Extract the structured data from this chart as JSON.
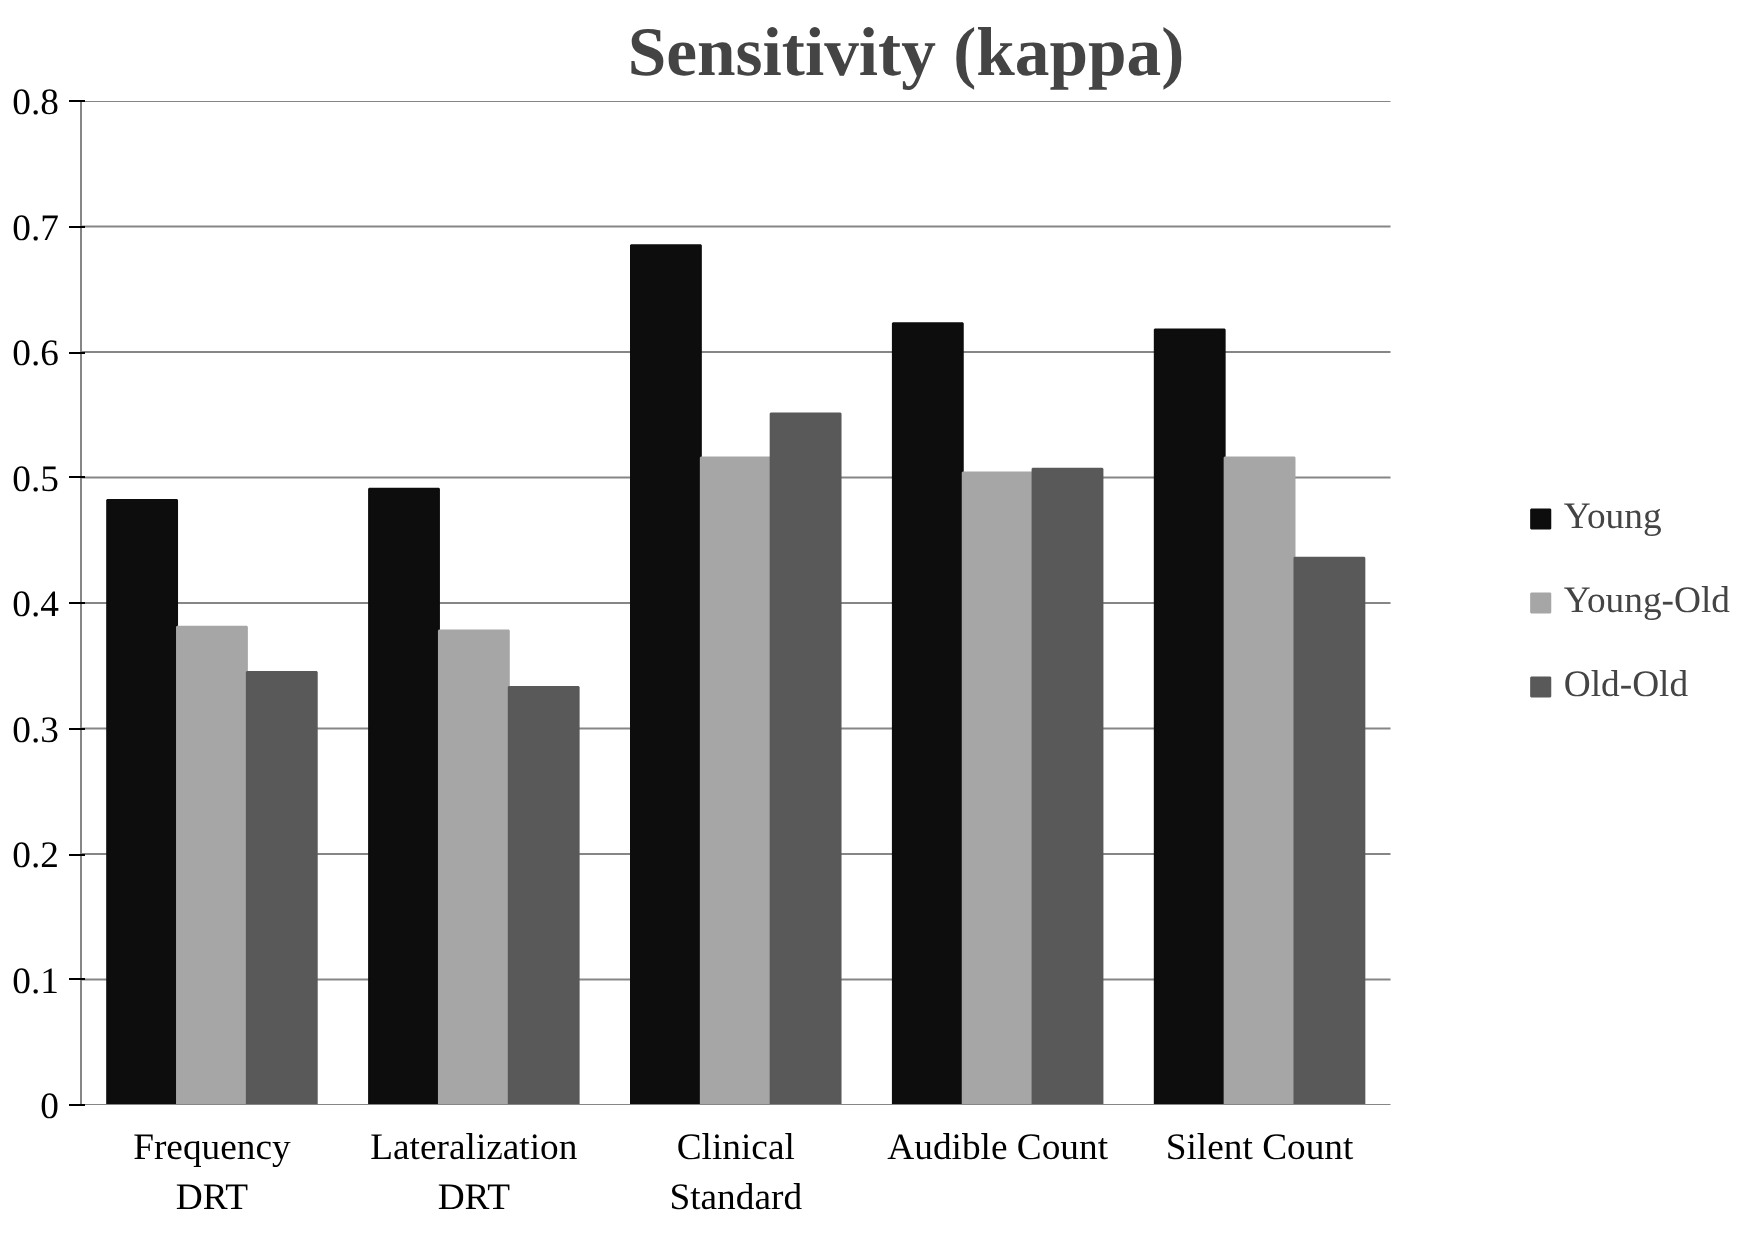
{
  "chart_data": {
    "type": "bar",
    "title": "Sensitivity (kappa)",
    "categories": [
      "Frequency\nDRT",
      "Lateralization\nDRT",
      "Clinical\nStandard",
      "Audible Count",
      "Silent Count"
    ],
    "series": [
      {
        "name": "Young",
        "color": "#0d0d0d",
        "values": [
          0.482,
          0.491,
          0.685,
          0.623,
          0.618
        ]
      },
      {
        "name": "Young-Old",
        "color": "#a6a6a6",
        "values": [
          0.381,
          0.378,
          0.516,
          0.504,
          0.516
        ]
      },
      {
        "name": "Old-Old",
        "color": "#595959",
        "values": [
          0.345,
          0.333,
          0.551,
          0.507,
          0.436
        ]
      }
    ],
    "ylim": [
      0,
      0.8
    ],
    "yticks": [
      0,
      0.1,
      0.2,
      0.3,
      0.4,
      0.5,
      0.6,
      0.7,
      0.8
    ],
    "grid": "y",
    "legend": "right"
  }
}
